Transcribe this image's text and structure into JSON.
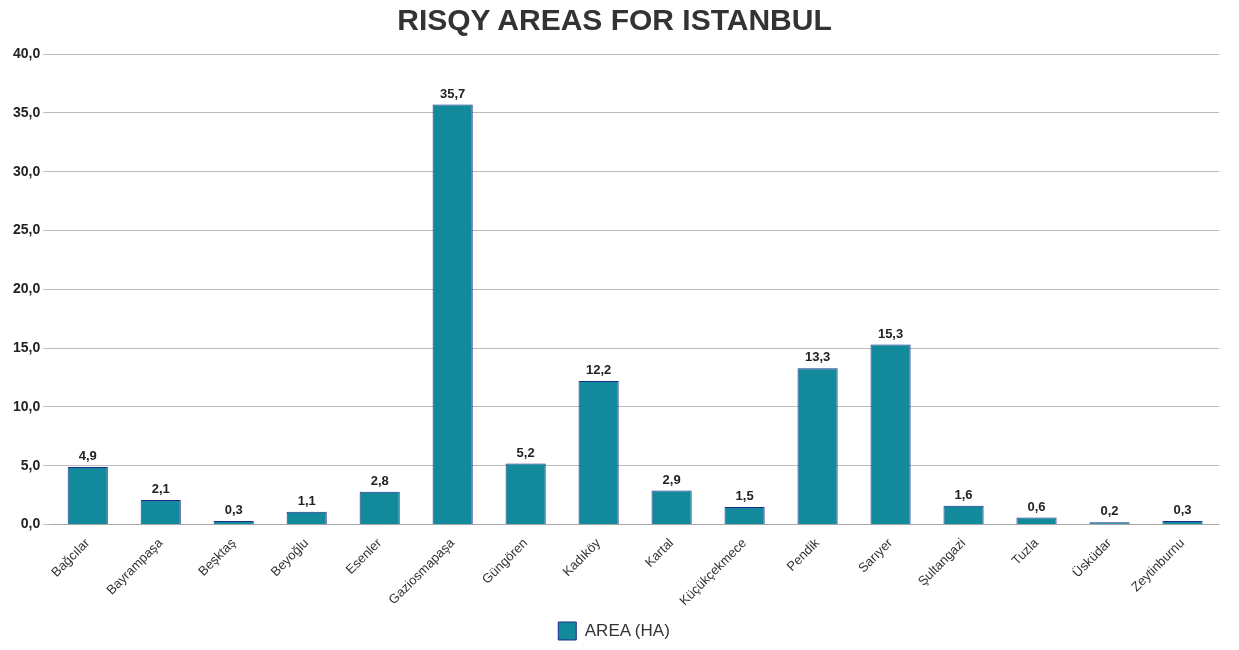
{
  "chart_data": {
    "type": "bar",
    "title": "RISQY AREAS FOR ISTANBUL",
    "categories": [
      "Bağcılar",
      "Bayrampaşa",
      "Beşktaş",
      "Beyoğlu",
      "Esenler",
      "Gaziosmapaşa",
      "Güngören",
      "Kadıköy",
      "Kartal",
      "Küçükçekmece",
      "Pendik",
      "Sarıyer",
      "Şultangazi",
      "Tuzla",
      "Üsküdar",
      "Zeytinburnu"
    ],
    "series": [
      {
        "name": "AREA (HA)",
        "color": "#138a9c",
        "values": [
          4.9,
          2.1,
          0.3,
          1.1,
          2.8,
          35.7,
          5.2,
          12.2,
          2.9,
          1.5,
          13.3,
          15.3,
          1.6,
          0.6,
          0.2,
          0.3
        ],
        "value_labels": [
          "4,9",
          "2,1",
          "0,3",
          "1,1",
          "2,8",
          "35,7",
          "5,2",
          "12,2",
          "2,9",
          "1,5",
          "13,3",
          "15,3",
          "1,6",
          "0,6",
          "0,2",
          "0,3"
        ]
      }
    ],
    "ylim": [
      0,
      40
    ],
    "yticks": [
      {
        "value": 0,
        "label": "0,0"
      },
      {
        "value": 5,
        "label": "5,0"
      },
      {
        "value": 10,
        "label": "10,0"
      },
      {
        "value": 15,
        "label": "15,0"
      },
      {
        "value": 20,
        "label": "20,0"
      },
      {
        "value": 25,
        "label": "25,0"
      },
      {
        "value": 30,
        "label": "30,0"
      },
      {
        "value": 35,
        "label": "35,0"
      },
      {
        "value": 40,
        "label": "40,0"
      }
    ],
    "grid": "y",
    "legend": "bottom"
  }
}
